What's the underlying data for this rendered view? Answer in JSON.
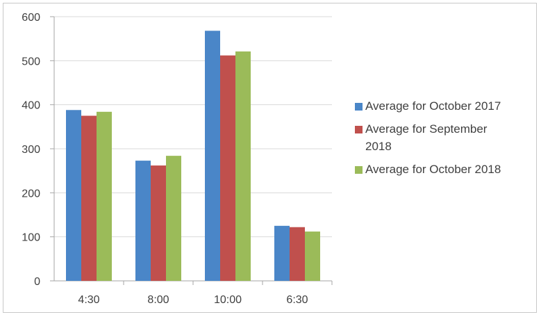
{
  "chart_data": {
    "type": "bar",
    "title": "",
    "xlabel": "",
    "ylabel": "",
    "ylim": [
      0,
      600
    ],
    "yticks": [
      0,
      100,
      200,
      300,
      400,
      500,
      600
    ],
    "grid": true,
    "legend_position": "right",
    "categories": [
      "4:30",
      "8:00",
      "10:00",
      "6:30"
    ],
    "series": [
      {
        "name": "Average for October 2017",
        "color": "#4a86c8",
        "values": [
          388,
          273,
          568,
          125
        ]
      },
      {
        "name": "Average for September 2018",
        "color": "#c0504d",
        "values": [
          375,
          262,
          512,
          122
        ]
      },
      {
        "name": "Average for October 2018",
        "color": "#9bbb59",
        "values": [
          384,
          284,
          521,
          112
        ]
      }
    ]
  }
}
